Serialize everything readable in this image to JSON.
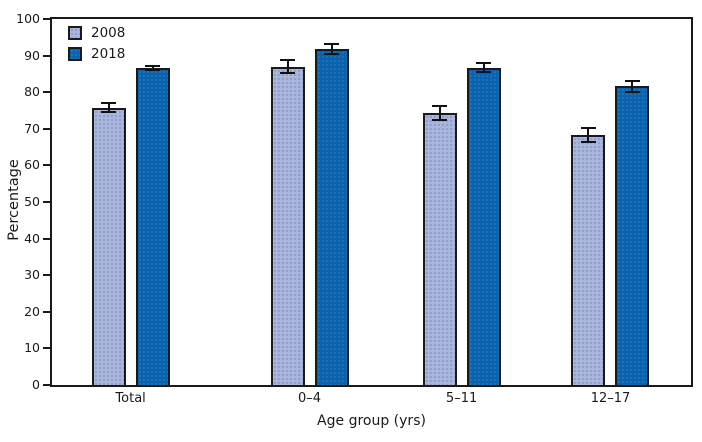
{
  "chart_data": {
    "type": "bar",
    "title": "",
    "xlabel": "Age group (yrs)",
    "ylabel": "Percentage",
    "ylim": [
      0,
      100
    ],
    "ytick_step": 10,
    "categories": [
      "Total",
      "0–4",
      "5–11",
      "12–17"
    ],
    "series": [
      {
        "name": "2008",
        "color": "#a9b5db",
        "values": [
          75.7,
          87.0,
          74.4,
          68.3
        ],
        "errors": [
          1.5,
          2.0,
          2.2,
          2.3
        ]
      },
      {
        "name": "2018",
        "color": "#0b62b3",
        "values": [
          86.6,
          91.8,
          86.7,
          81.6
        ],
        "errors": [
          0.7,
          1.7,
          1.5,
          1.7
        ]
      }
    ],
    "error_bars": true,
    "legend_position": "top-left",
    "grid": false,
    "axis_color": "#1a1a1a",
    "background": "#ffffff"
  }
}
